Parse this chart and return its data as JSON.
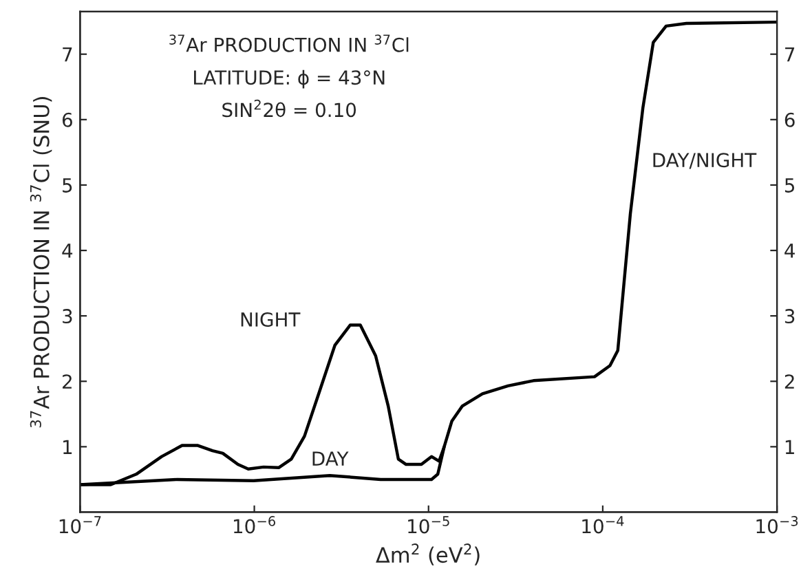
{
  "chart_data": {
    "type": "line",
    "xlabel": "Δm$^{2}$ (eV$^{2}$)",
    "ylabel": "$^{37}$Ar PRODUCTION IN $^{37}$Cl (SNU)",
    "annotations": [
      "$^{37}$Ar PRODUCTION IN $^{37}$Cl",
      "LATITUDE: ϕ = 43°N",
      "SIN$^{2}$2θ = 0.10",
      "DAY/NIGHT"
    ],
    "log": "x",
    "xlim": [
      1e-07,
      0.001
    ],
    "xticks": [
      {
        "value": 1e-07,
        "label": "10$^{−7}$"
      },
      {
        "value": 1e-06,
        "label": "10$^{−6}$"
      },
      {
        "value": 1e-05,
        "label": "10$^{−5}$"
      },
      {
        "value": 0.0001,
        "label": "10$^{−4}$"
      },
      {
        "value": 0.001,
        "label": "10$^{−3}$"
      }
    ],
    "ylim": [
      0,
      7.65
    ],
    "yticks": [
      1,
      2,
      3,
      4,
      5,
      6,
      7
    ],
    "y2lim": [
      0,
      7.65
    ],
    "y2ticks": [
      1,
      2,
      3,
      4,
      5,
      6,
      7
    ],
    "grid": false,
    "legend": false,
    "line_style": "solid",
    "marker": "none",
    "series": [
      {
        "name": "NIGHT",
        "color": "#000000",
        "x": [
          1e-07,
          1.5e-07,
          2.1e-07,
          2.94e-07,
          3.85e-07,
          4.71e-07,
          5.75e-07,
          6.59e-07,
          8.05e-07,
          9.23e-07,
          1.13e-06,
          1.38e-06,
          1.63e-06,
          1.94e-06,
          2.37e-06,
          2.9e-06,
          3.55e-06,
          4.06e-06,
          4.97e-06,
          5.87e-06,
          6.71e-06,
          7.43e-06,
          9.1e-06,
          1.04e-05,
          1.15e-05,
          1.23e-05,
          1.36e-05,
          1.56e-05,
          2.04e-05,
          2.86e-05,
          4e-05,
          8.97e-05,
          0.00011,
          0.000122,
          0.000144,
          0.00017,
          0.000195,
          0.000231,
          0.000302,
          0.001
        ],
        "values": [
          0.42,
          0.42,
          0.58,
          0.85,
          1.02,
          1.02,
          0.94,
          0.9,
          0.73,
          0.66,
          0.69,
          0.68,
          0.81,
          1.16,
          1.85,
          2.55,
          2.86,
          2.86,
          2.39,
          1.62,
          0.81,
          0.73,
          0.73,
          0.85,
          0.78,
          1.0,
          1.39,
          1.62,
          1.81,
          1.93,
          2.01,
          2.07,
          2.24,
          2.47,
          4.56,
          6.18,
          7.18,
          7.43,
          7.47,
          7.49
        ]
      },
      {
        "name": "DAY",
        "color": "#000000",
        "x": [
          1e-07,
          3.6e-07,
          9.9e-07,
          2.71e-06,
          5.31e-06,
          1.04e-05,
          1.13e-05,
          1.23e-05
        ],
        "values": [
          0.42,
          0.5,
          0.48,
          0.56,
          0.5,
          0.5,
          0.58,
          1.0
        ]
      }
    ]
  }
}
